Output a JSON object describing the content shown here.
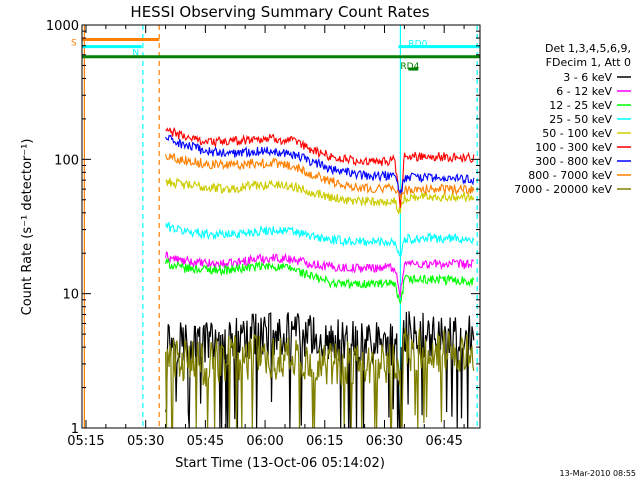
{
  "chart_data": {
    "type": "line",
    "title": "HESSI Observing Summary Count Rates",
    "xlabel": "Start Time (13-Oct-06 05:14:02)",
    "ylabel": "Count Rate (s⁻¹ detector⁻¹)",
    "yscale": "log",
    "ylim": [
      1,
      1000
    ],
    "xlim_minutes": [
      0,
      100
    ],
    "x_ticks": [
      {
        "m": 1,
        "label": "05:15"
      },
      {
        "m": 16,
        "label": "05:30"
      },
      {
        "m": 31,
        "label": "05:45"
      },
      {
        "m": 46,
        "label": "06:00"
      },
      {
        "m": 61,
        "label": "06:15"
      },
      {
        "m": 76,
        "label": "06:30"
      },
      {
        "m": 91,
        "label": "06:45"
      }
    ],
    "y_ticks": [
      {
        "v": 1,
        "label": "1"
      },
      {
        "v": 10,
        "label": "10"
      },
      {
        "v": 100,
        "label": "100"
      },
      {
        "v": 1000,
        "label": "1000"
      }
    ],
    "legend_header": [
      "Det 1,3,4,5,6,9,",
      "FDecim 1, Att 0"
    ],
    "footer_date": "13-Mar-2010 08:55",
    "flags": [
      {
        "label": "S",
        "color": "#ff8000",
        "y": 780,
        "x0": 0,
        "x1": 19.4
      },
      {
        "label": "N",
        "color": "#00ffff",
        "y": 690,
        "x0": 0,
        "x1": 15
      },
      {
        "label": "RD0",
        "color": "#00ffff",
        "y": 690,
        "x0": 79.5,
        "x1": 100
      },
      {
        "label": "RD4",
        "color": "#008000",
        "y": 580,
        "x0": 0,
        "x1": 100
      },
      {
        "label": "",
        "color": "#008000",
        "y": 470,
        "x0": 82,
        "x1": 84.5
      }
    ],
    "vlines": [
      {
        "m": 0.6,
        "color": "#ff8000",
        "style": "solid"
      },
      {
        "m": 15.3,
        "color": "#00ffff",
        "style": "dashed"
      },
      {
        "m": 19.4,
        "color": "#ff8000",
        "style": "dashed"
      },
      {
        "m": 80.0,
        "color": "#00ffff",
        "style": "solid"
      },
      {
        "m": 99.3,
        "color": "#00ffff",
        "style": "dashed"
      }
    ],
    "series": [
      {
        "name": "3 - 6 keV",
        "color": "#000000",
        "x": [
          21,
          27,
          33,
          39,
          45,
          51,
          57,
          63,
          69,
          75,
          78.5,
          80,
          81,
          86,
          93,
          98.5
        ],
        "y": [
          4.5,
          4.4,
          4.3,
          4.5,
          4.9,
          5.0,
          4.8,
          4.4,
          4.2,
          4.2,
          4.2,
          2.5,
          5.2,
          5.0,
          4.8,
          4.6
        ]
      },
      {
        "name": "6 - 12 keV",
        "color": "#ff00ff",
        "x": [
          21,
          25,
          31,
          37,
          43,
          48,
          53,
          58,
          63,
          68,
          73,
          78.5,
          80,
          81,
          86,
          92,
          98.5
        ],
        "y": [
          19,
          17.5,
          16.7,
          16.6,
          18,
          18.5,
          18,
          16.7,
          15.8,
          15.5,
          15.6,
          15.8,
          10,
          16.8,
          16.6,
          16.6,
          16.5
        ]
      },
      {
        "name": "12 - 25 keV",
        "color": "#00ff00",
        "x": [
          21,
          25,
          31,
          37,
          43,
          48,
          53,
          58,
          63,
          68,
          73,
          78.5,
          80,
          81,
          86,
          92,
          98.5
        ],
        "y": [
          17,
          15.5,
          15.2,
          15,
          15.8,
          16,
          15.3,
          13.3,
          12,
          11.7,
          11.9,
          11.7,
          8.0,
          12.8,
          12.7,
          12.6,
          12.5
        ]
      },
      {
        "name": "25 - 50 keV",
        "color": "#00ffff",
        "x": [
          21,
          25,
          31,
          37,
          43,
          48,
          53,
          58,
          63,
          68,
          73,
          78.5,
          80,
          81,
          86,
          92,
          98.5
        ],
        "y": [
          32,
          29.5,
          28,
          27.5,
          29,
          29.8,
          29,
          26.5,
          25,
          24.5,
          24.3,
          24.5,
          19,
          25.5,
          25.8,
          25.8,
          25.5
        ]
      },
      {
        "name": "50 - 100 keV",
        "color": "#cccc00",
        "x": [
          21,
          25,
          31,
          37,
          43,
          48,
          53,
          58,
          63,
          68,
          73,
          78.5,
          80,
          81,
          86,
          92,
          98.5
        ],
        "y": [
          69,
          65,
          62,
          60,
          64,
          65,
          63,
          57,
          52,
          49,
          48,
          49,
          40,
          52,
          53,
          53,
          53
        ]
      },
      {
        "name": "100 - 300 keV",
        "color": "#ff0000",
        "x": [
          21,
          25,
          31,
          37,
          43,
          48,
          53,
          58,
          63,
          68,
          73,
          78.5,
          80,
          81,
          86,
          92,
          98.5
        ],
        "y": [
          165,
          150,
          136,
          135,
          142,
          143,
          136,
          117,
          104,
          98,
          95,
          98,
          45,
          104,
          106,
          104,
          102
        ]
      },
      {
        "name": "300 - 800 keV",
        "color": "#0000ff",
        "x": [
          21,
          25,
          31,
          37,
          43,
          48,
          53,
          58,
          63,
          68,
          73,
          78.5,
          80,
          81,
          86,
          92,
          98.5
        ],
        "y": [
          145,
          130,
          115,
          110,
          115,
          116,
          110,
          95,
          85,
          78,
          75,
          76,
          55,
          73,
          73,
          72,
          71
        ]
      },
      {
        "name": "800 - 7000 keV",
        "color": "#ff8000",
        "x": [
          21,
          25,
          31,
          37,
          43,
          48,
          53,
          58,
          63,
          68,
          73,
          78.5,
          80,
          81,
          86,
          92,
          98.5
        ],
        "y": [
          107,
          100,
          93,
          90,
          93,
          94,
          89,
          77,
          68,
          63,
          61,
          61,
          52,
          59,
          60,
          60,
          59
        ]
      },
      {
        "name": "7000 - 20000 keV",
        "color": "#808000",
        "x": [
          21,
          25,
          31,
          37,
          43,
          48,
          53,
          58,
          63,
          68,
          73,
          78.5,
          80,
          81,
          86,
          92,
          98.5
        ],
        "y": [
          3.2,
          3.1,
          3.0,
          3.3,
          3.4,
          3.4,
          3.3,
          3.2,
          3.0,
          3.1,
          3.0,
          3.1,
          2.0,
          3.8,
          3.7,
          3.7,
          3.6
        ]
      }
    ]
  }
}
